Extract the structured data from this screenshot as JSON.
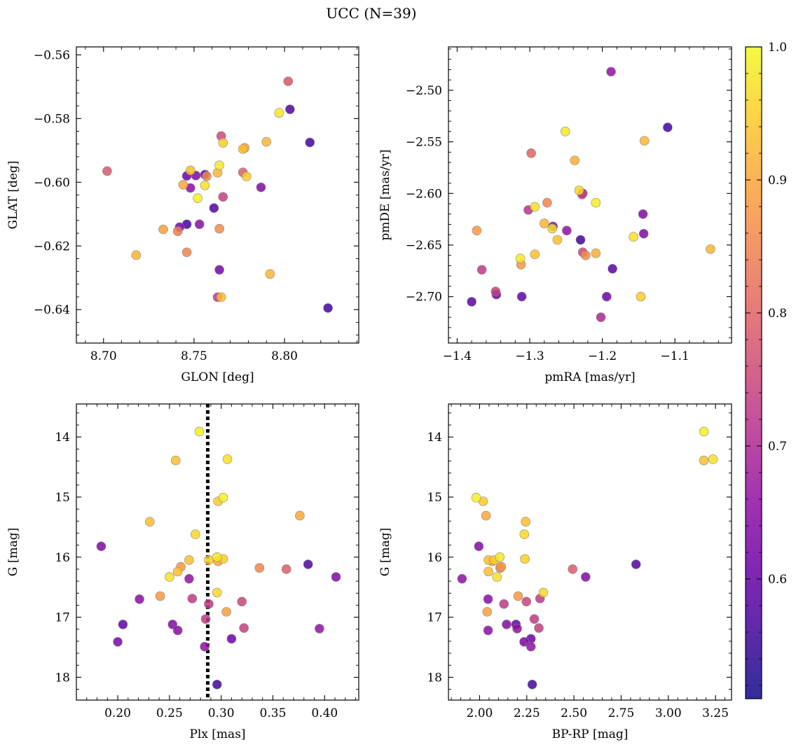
{
  "suptitle": "UCC (N=39)",
  "colormap": {
    "name": "plasma",
    "min": 0.51,
    "max": 1.0,
    "ticks": [
      0.6,
      0.7,
      0.8,
      0.9,
      1.0
    ],
    "tick_labels": [
      "0.6",
      "0.7",
      "0.8",
      "0.9",
      "1.0"
    ]
  },
  "chart_data": [
    {
      "type": "scatter",
      "id": "glon-glat",
      "xlabel": "GLON [deg]",
      "ylabel": "GLAT [deg]",
      "xlim": [
        8.685,
        8.841
      ],
      "ylim": [
        -0.6505,
        -0.5575
      ],
      "xticks": [
        8.7,
        8.75,
        8.8
      ],
      "xtick_labels": [
        "8.70",
        "8.75",
        "8.80"
      ],
      "yticks": [
        -0.64,
        -0.62,
        -0.6,
        -0.58,
        -0.56
      ],
      "ytick_labels": [
        "−0.64",
        "−0.62",
        "−0.60",
        "−0.58",
        "−0.56"
      ],
      "points": [
        {
          "x": 8.802,
          "y": -0.5683,
          "c": 0.78
        },
        {
          "x": 8.803,
          "y": -0.5771,
          "c": 0.58
        },
        {
          "x": 8.797,
          "y": -0.5782,
          "c": 0.98
        },
        {
          "x": 8.814,
          "y": -0.5875,
          "c": 0.56
        },
        {
          "x": 8.79,
          "y": -0.5873,
          "c": 0.92
        },
        {
          "x": 8.765,
          "y": -0.5855,
          "c": 0.76
        },
        {
          "x": 8.766,
          "y": -0.5876,
          "c": 0.95
        },
        {
          "x": 8.778,
          "y": -0.5892,
          "c": 0.9
        },
        {
          "x": 8.777,
          "y": -0.5896,
          "c": 0.93
        },
        {
          "x": 8.764,
          "y": -0.5947,
          "c": 0.98
        },
        {
          "x": 8.763,
          "y": -0.597,
          "c": 0.92
        },
        {
          "x": 8.777,
          "y": -0.5969,
          "c": 0.79
        },
        {
          "x": 8.779,
          "y": -0.5982,
          "c": 0.95
        },
        {
          "x": 8.787,
          "y": -0.6016,
          "c": 0.64
        },
        {
          "x": 8.702,
          "y": -0.5965,
          "c": 0.78
        },
        {
          "x": 8.748,
          "y": -0.5963,
          "c": 0.93
        },
        {
          "x": 8.746,
          "y": -0.598,
          "c": 0.61
        },
        {
          "x": 8.751,
          "y": -0.5979,
          "c": 0.63
        },
        {
          "x": 8.756,
          "y": -0.5976,
          "c": 0.6
        },
        {
          "x": 8.757,
          "y": -0.5981,
          "c": 0.86
        },
        {
          "x": 8.766,
          "y": -0.6046,
          "c": 0.74
        },
        {
          "x": 8.744,
          "y": -0.6008,
          "c": 0.9
        },
        {
          "x": 8.756,
          "y": -0.601,
          "c": 0.97
        },
        {
          "x": 8.748,
          "y": -0.6018,
          "c": 0.65
        },
        {
          "x": 8.752,
          "y": -0.605,
          "c": 0.99
        },
        {
          "x": 8.761,
          "y": -0.6081,
          "c": 0.58
        },
        {
          "x": 8.742,
          "y": -0.6141,
          "c": 0.62
        },
        {
          "x": 8.746,
          "y": -0.6132,
          "c": 0.56
        },
        {
          "x": 8.753,
          "y": -0.6132,
          "c": 0.65
        },
        {
          "x": 8.733,
          "y": -0.6148,
          "c": 0.89
        },
        {
          "x": 8.741,
          "y": -0.6154,
          "c": 0.84
        },
        {
          "x": 8.764,
          "y": -0.6146,
          "c": 0.86
        },
        {
          "x": 8.718,
          "y": -0.6229,
          "c": 0.92
        },
        {
          "x": 8.746,
          "y": -0.622,
          "c": 0.85
        },
        {
          "x": 8.764,
          "y": -0.6275,
          "c": 0.62
        },
        {
          "x": 8.792,
          "y": -0.6288,
          "c": 0.92
        },
        {
          "x": 8.763,
          "y": -0.6361,
          "c": 0.73
        },
        {
          "x": 8.765,
          "y": -0.6361,
          "c": 0.93
        },
        {
          "x": 8.824,
          "y": -0.6395,
          "c": 0.56
        }
      ]
    },
    {
      "type": "scatter",
      "id": "pmra-pmde",
      "xlabel": "pmRA [mas/yr]",
      "ylabel": "pmDE [mas/yr]",
      "xlim": [
        -1.412,
        -1.022
      ],
      "ylim": [
        -2.745,
        -2.458
      ],
      "xticks": [
        -1.4,
        -1.3,
        -1.2,
        -1.1
      ],
      "xtick_labels": [
        "−1.4",
        "−1.3",
        "−1.2",
        "−1.1"
      ],
      "yticks": [
        -2.7,
        -2.65,
        -2.6,
        -2.55,
        -2.5
      ],
      "ytick_labels": [
        "−2.70",
        "−2.65",
        "−2.60",
        "−2.55",
        "−2.50"
      ],
      "points": [
        {
          "x": -1.188,
          "y": -2.482,
          "c": 0.66
        },
        {
          "x": -1.11,
          "y": -2.536,
          "c": 0.56
        },
        {
          "x": -1.251,
          "y": -2.54,
          "c": 0.98
        },
        {
          "x": -1.142,
          "y": -2.549,
          "c": 0.92
        },
        {
          "x": -1.298,
          "y": -2.561,
          "c": 0.8
        },
        {
          "x": -1.238,
          "y": -2.568,
          "c": 0.91
        },
        {
          "x": -1.232,
          "y": -2.597,
          "c": 0.96
        },
        {
          "x": -1.227,
          "y": -2.6,
          "c": 0.61
        },
        {
          "x": -1.228,
          "y": -2.601,
          "c": 0.75
        },
        {
          "x": -1.209,
          "y": -2.609,
          "c": 0.99
        },
        {
          "x": -1.276,
          "y": -2.609,
          "c": 0.85
        },
        {
          "x": -1.293,
          "y": -2.613,
          "c": 0.97
        },
        {
          "x": -1.302,
          "y": -2.616,
          "c": 0.72
        },
        {
          "x": -1.144,
          "y": -2.62,
          "c": 0.64
        },
        {
          "x": -1.28,
          "y": -2.629,
          "c": 0.92
        },
        {
          "x": -1.268,
          "y": -2.632,
          "c": 0.63
        },
        {
          "x": -1.269,
          "y": -2.634,
          "c": 0.97
        },
        {
          "x": -1.249,
          "y": -2.636,
          "c": 0.66
        },
        {
          "x": -1.373,
          "y": -2.636,
          "c": 0.88
        },
        {
          "x": -1.143,
          "y": -2.639,
          "c": 0.64
        },
        {
          "x": -1.157,
          "y": -2.642,
          "c": 0.97
        },
        {
          "x": -1.262,
          "y": -2.645,
          "c": 0.93
        },
        {
          "x": -1.23,
          "y": -2.645,
          "c": 0.56
        },
        {
          "x": -1.051,
          "y": -2.654,
          "c": 0.92
        },
        {
          "x": -1.227,
          "y": -2.657,
          "c": 0.75
        },
        {
          "x": -1.209,
          "y": -2.658,
          "c": 0.91
        },
        {
          "x": -1.223,
          "y": -2.66,
          "c": 0.86
        },
        {
          "x": -1.293,
          "y": -2.659,
          "c": 0.93
        },
        {
          "x": -1.313,
          "y": -2.663,
          "c": 0.98
        },
        {
          "x": -1.312,
          "y": -2.669,
          "c": 0.88
        },
        {
          "x": -1.366,
          "y": -2.674,
          "c": 0.73
        },
        {
          "x": -1.186,
          "y": -2.673,
          "c": 0.59
        },
        {
          "x": -1.347,
          "y": -2.695,
          "c": 0.74
        },
        {
          "x": -1.346,
          "y": -2.698,
          "c": 0.61
        },
        {
          "x": -1.311,
          "y": -2.7,
          "c": 0.6
        },
        {
          "x": -1.194,
          "y": -2.7,
          "c": 0.61
        },
        {
          "x": -1.147,
          "y": -2.7,
          "c": 0.95
        },
        {
          "x": -1.38,
          "y": -2.705,
          "c": 0.59
        },
        {
          "x": -1.202,
          "y": -2.72,
          "c": 0.7
        }
      ]
    },
    {
      "type": "scatter",
      "id": "plx-g",
      "xlabel": "Plx [mas]",
      "ylabel": "G [mag]",
      "xlim": [
        0.16,
        0.433
      ],
      "ylim": [
        18.38,
        13.45
      ],
      "y_inverted": true,
      "xticks": [
        0.2,
        0.25,
        0.3,
        0.35,
        0.4
      ],
      "xtick_labels": [
        "0.20",
        "0.25",
        "0.30",
        "0.35",
        "0.40"
      ],
      "yticks": [
        14,
        15,
        16,
        17,
        18
      ],
      "ytick_labels": [
        "14",
        "15",
        "16",
        "17",
        "18"
      ],
      "vline": {
        "x": 0.287,
        "style": "dotted"
      },
      "points": [
        {
          "x": 0.279,
          "y": 13.91,
          "c": 0.99
        },
        {
          "x": 0.256,
          "y": 14.39,
          "c": 0.93
        },
        {
          "x": 0.306,
          "y": 14.37,
          "c": 0.97
        },
        {
          "x": 0.302,
          "y": 15.01,
          "c": 0.99
        },
        {
          "x": 0.297,
          "y": 15.07,
          "c": 0.94
        },
        {
          "x": 0.231,
          "y": 15.41,
          "c": 0.93
        },
        {
          "x": 0.376,
          "y": 15.31,
          "c": 0.9
        },
        {
          "x": 0.275,
          "y": 15.62,
          "c": 0.96
        },
        {
          "x": 0.184,
          "y": 15.82,
          "c": 0.64
        },
        {
          "x": 0.384,
          "y": 16.12,
          "c": 0.58
        },
        {
          "x": 0.411,
          "y": 16.33,
          "c": 0.64
        },
        {
          "x": 0.269,
          "y": 16.05,
          "c": 0.93
        },
        {
          "x": 0.288,
          "y": 16.05,
          "c": 0.95
        },
        {
          "x": 0.296,
          "y": 16.0,
          "c": 0.98
        },
        {
          "x": 0.302,
          "y": 16.03,
          "c": 0.95
        },
        {
          "x": 0.297,
          "y": 16.07,
          "c": 0.9
        },
        {
          "x": 0.261,
          "y": 16.16,
          "c": 0.88
        },
        {
          "x": 0.258,
          "y": 16.24,
          "c": 0.93
        },
        {
          "x": 0.25,
          "y": 16.33,
          "c": 0.97
        },
        {
          "x": 0.337,
          "y": 16.18,
          "c": 0.85
        },
        {
          "x": 0.363,
          "y": 16.2,
          "c": 0.79
        },
        {
          "x": 0.269,
          "y": 16.36,
          "c": 0.66
        },
        {
          "x": 0.296,
          "y": 16.59,
          "c": 0.96
        },
        {
          "x": 0.241,
          "y": 16.65,
          "c": 0.88
        },
        {
          "x": 0.221,
          "y": 16.7,
          "c": 0.65
        },
        {
          "x": 0.272,
          "y": 16.69,
          "c": 0.73
        },
        {
          "x": 0.32,
          "y": 16.74,
          "c": 0.75
        },
        {
          "x": 0.288,
          "y": 16.78,
          "c": 0.73
        },
        {
          "x": 0.305,
          "y": 16.91,
          "c": 0.89
        },
        {
          "x": 0.285,
          "y": 17.03,
          "c": 0.73
        },
        {
          "x": 0.205,
          "y": 17.12,
          "c": 0.6
        },
        {
          "x": 0.253,
          "y": 17.12,
          "c": 0.64
        },
        {
          "x": 0.322,
          "y": 17.18,
          "c": 0.74
        },
        {
          "x": 0.395,
          "y": 17.19,
          "c": 0.66
        },
        {
          "x": 0.258,
          "y": 17.22,
          "c": 0.65
        },
        {
          "x": 0.31,
          "y": 17.36,
          "c": 0.61
        },
        {
          "x": 0.2,
          "y": 17.41,
          "c": 0.63
        },
        {
          "x": 0.284,
          "y": 17.49,
          "c": 0.66
        },
        {
          "x": 0.296,
          "y": 18.12,
          "c": 0.56
        }
      ]
    },
    {
      "type": "scatter",
      "id": "bprp-g",
      "xlabel": "BP-RP [mag]",
      "ylabel": "G [mag]",
      "xlim": [
        1.835,
        3.335
      ],
      "ylim": [
        18.38,
        13.45
      ],
      "y_inverted": true,
      "xticks": [
        2.0,
        2.25,
        2.5,
        2.75,
        3.0,
        3.25
      ],
      "xtick_labels": [
        "2.00",
        "2.25",
        "2.50",
        "2.75",
        "3.00",
        "3.25"
      ],
      "yticks": [
        14,
        15,
        16,
        17,
        18
      ],
      "ytick_labels": [
        "14",
        "15",
        "16",
        "17",
        "18"
      ],
      "points": [
        {
          "x": 3.189,
          "y": 13.91,
          "c": 0.99
        },
        {
          "x": 3.188,
          "y": 14.39,
          "c": 0.93
        },
        {
          "x": 3.237,
          "y": 14.37,
          "c": 0.97
        },
        {
          "x": 1.982,
          "y": 15.01,
          "c": 0.99
        },
        {
          "x": 2.019,
          "y": 15.07,
          "c": 0.94
        },
        {
          "x": 2.034,
          "y": 15.31,
          "c": 0.9
        },
        {
          "x": 2.244,
          "y": 15.41,
          "c": 0.93
        },
        {
          "x": 2.237,
          "y": 15.62,
          "c": 0.96
        },
        {
          "x": 1.996,
          "y": 15.82,
          "c": 0.64
        },
        {
          "x": 2.829,
          "y": 16.12,
          "c": 0.58
        },
        {
          "x": 2.562,
          "y": 16.33,
          "c": 0.64
        },
        {
          "x": 2.047,
          "y": 16.05,
          "c": 0.93
        },
        {
          "x": 2.078,
          "y": 16.05,
          "c": 0.95
        },
        {
          "x": 2.107,
          "y": 16.0,
          "c": 0.98
        },
        {
          "x": 2.24,
          "y": 16.03,
          "c": 0.95
        },
        {
          "x": 2.067,
          "y": 16.07,
          "c": 0.9
        },
        {
          "x": 2.115,
          "y": 16.16,
          "c": 0.88
        },
        {
          "x": 2.047,
          "y": 16.24,
          "c": 0.93
        },
        {
          "x": 2.092,
          "y": 16.33,
          "c": 0.97
        },
        {
          "x": 2.109,
          "y": 16.18,
          "c": 0.85
        },
        {
          "x": 2.493,
          "y": 16.2,
          "c": 0.79
        },
        {
          "x": 1.907,
          "y": 16.36,
          "c": 0.66
        },
        {
          "x": 2.338,
          "y": 16.59,
          "c": 0.96
        },
        {
          "x": 2.204,
          "y": 16.65,
          "c": 0.88
        },
        {
          "x": 2.045,
          "y": 16.7,
          "c": 0.65
        },
        {
          "x": 2.32,
          "y": 16.69,
          "c": 0.73
        },
        {
          "x": 2.248,
          "y": 16.74,
          "c": 0.75
        },
        {
          "x": 2.129,
          "y": 16.78,
          "c": 0.73
        },
        {
          "x": 2.04,
          "y": 16.91,
          "c": 0.89
        },
        {
          "x": 2.29,
          "y": 17.03,
          "c": 0.73
        },
        {
          "x": 2.193,
          "y": 17.12,
          "c": 0.6
        },
        {
          "x": 2.143,
          "y": 17.12,
          "c": 0.64
        },
        {
          "x": 2.314,
          "y": 17.18,
          "c": 0.74
        },
        {
          "x": 2.199,
          "y": 17.19,
          "c": 0.66
        },
        {
          "x": 2.045,
          "y": 17.22,
          "c": 0.65
        },
        {
          "x": 2.272,
          "y": 17.36,
          "c": 0.61
        },
        {
          "x": 2.236,
          "y": 17.41,
          "c": 0.63
        },
        {
          "x": 2.272,
          "y": 17.49,
          "c": 0.66
        },
        {
          "x": 2.279,
          "y": 18.12,
          "c": 0.56
        }
      ]
    }
  ]
}
